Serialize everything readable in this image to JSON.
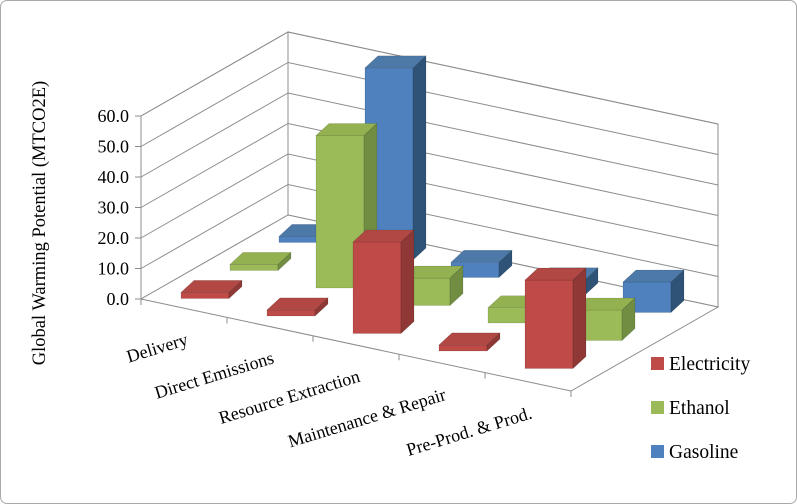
{
  "frame": {
    "background_color": "#ffffff",
    "border_color": "#a9a9a9"
  },
  "chart_data": {
    "type": "bar",
    "subtype": "3d-clustered-column",
    "title": "",
    "xlabel": "",
    "ylabel": "Global Warming Potential (MTCO2E)",
    "categories": [
      "Delivery",
      "Direct Emissions",
      "Resource Extraction",
      "Maintenance & Repair",
      "Pre-Prod. & Prod."
    ],
    "series": [
      {
        "name": "Electricity",
        "color": "#be4b48",
        "top_color": "#b14844",
        "side_color": "#8f3835",
        "values": [
          2,
          2,
          30,
          2,
          29
        ]
      },
      {
        "name": "Ethanol",
        "color": "#9bbb59",
        "top_color": "#93b150",
        "side_color": "#708d42",
        "values": [
          2,
          50,
          9,
          5,
          10
        ]
      },
      {
        "name": "Gasoline",
        "color": "#4e81be",
        "top_color": "#4c79a8",
        "side_color": "#2e5377",
        "values": [
          2,
          63,
          5,
          5,
          10
        ]
      }
    ],
    "yticks": [
      "0.0",
      "10.0",
      "20.0",
      "30.0",
      "40.0",
      "50.0",
      "60.0"
    ],
    "ylim": [
      0,
      60
    ],
    "ytick_step": 10,
    "grid": true,
    "gridline_color": "#8c8c8c",
    "legend_position": "right",
    "series_arrangement": "depth"
  }
}
